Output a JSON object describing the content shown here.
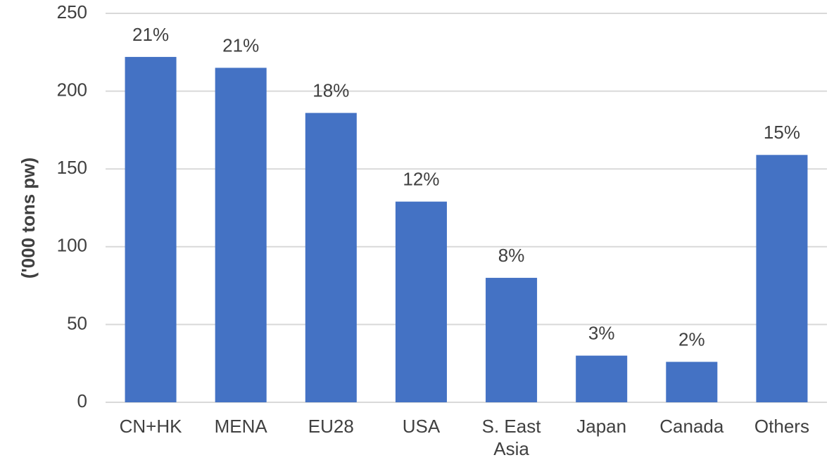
{
  "chart_data": {
    "type": "bar",
    "y_label": "('000 tons pw)",
    "categories": [
      "CN+HK",
      "MENA",
      "EU28",
      "USA",
      "S. East Asia",
      "Japan",
      "Canada",
      "Others"
    ],
    "values": [
      222,
      215,
      186,
      129,
      80,
      30,
      26,
      159
    ],
    "share_labels": [
      "21%",
      "21%",
      "18%",
      "12%",
      "8%",
      "3%",
      "2%",
      "15%"
    ],
    "color": "#4472c4",
    "ylim": [
      0,
      250
    ],
    "yticks": [
      0,
      50,
      100,
      150,
      200,
      250
    ],
    "grid": true
  }
}
